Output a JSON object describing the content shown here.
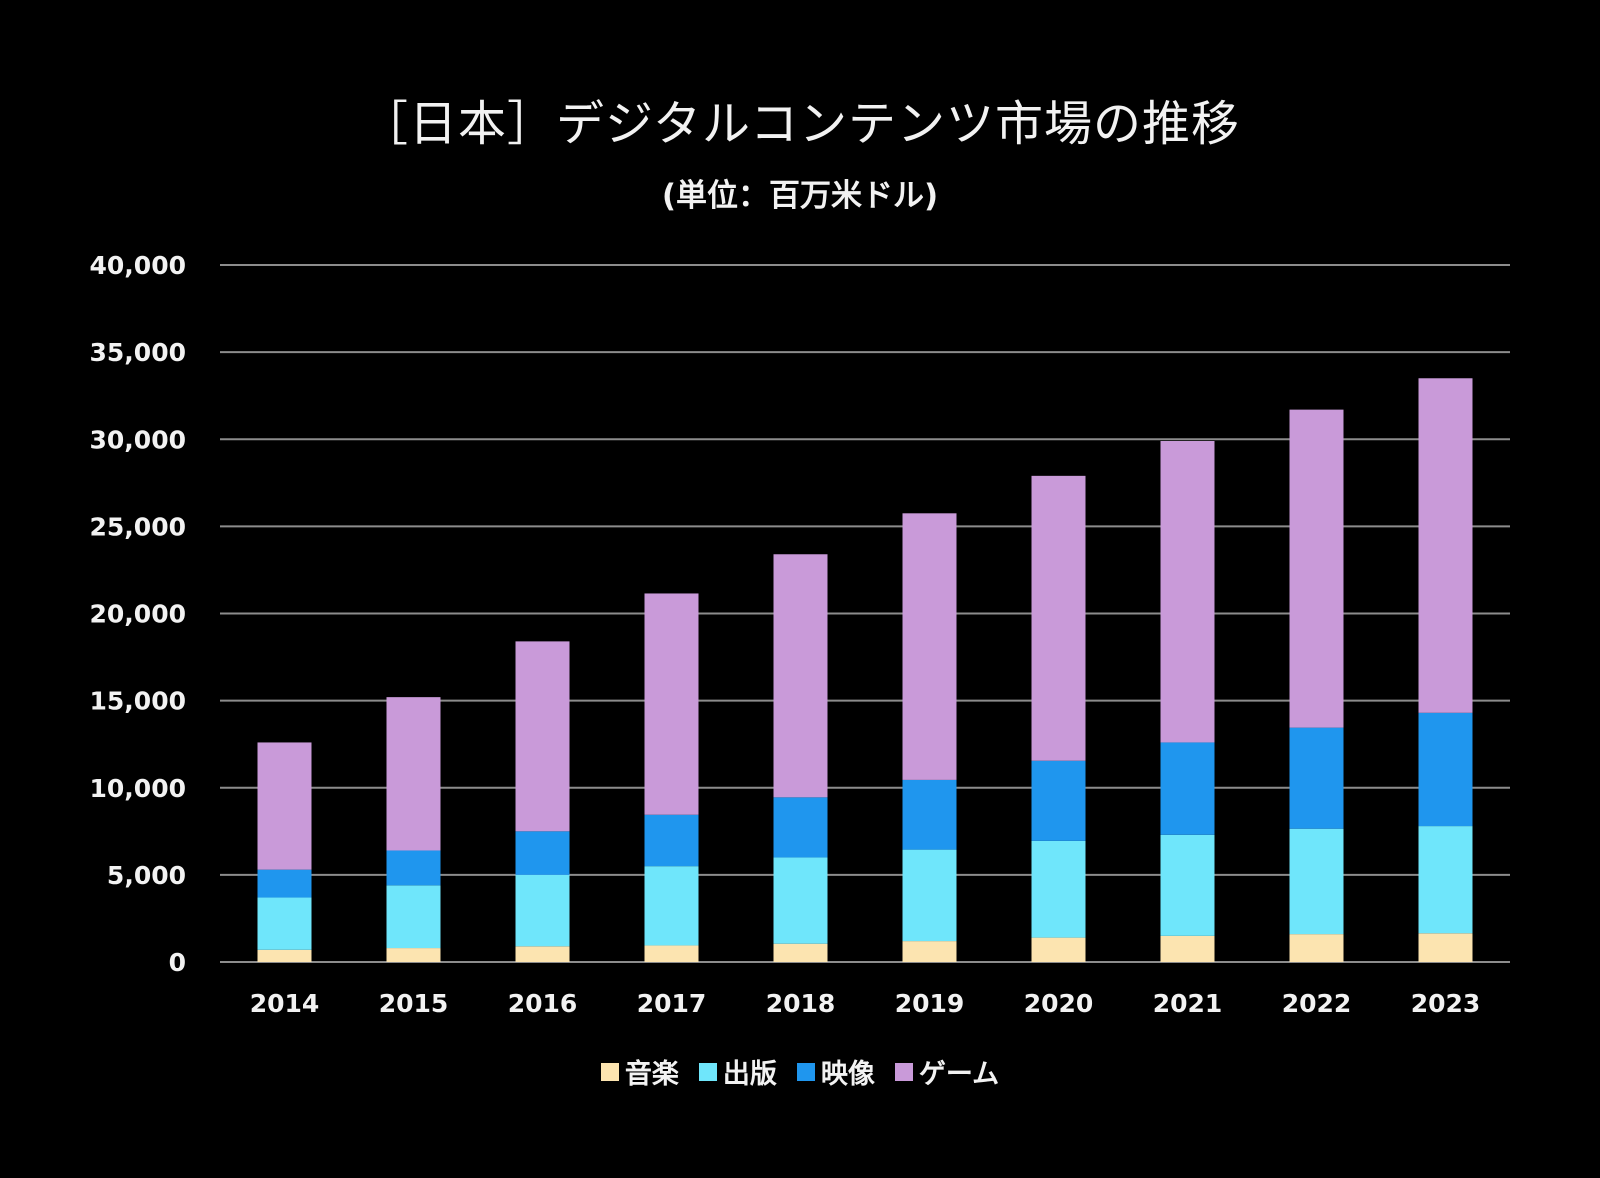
{
  "chart_data": {
    "type": "bar",
    "stacked": true,
    "title": "［日本］デジタルコンテンツ市場の推移",
    "subtitle": "(単位：百万米ドル)",
    "categories": [
      "2014",
      "2015",
      "2016",
      "2017",
      "2018",
      "2019",
      "2020",
      "2021",
      "2022",
      "2023"
    ],
    "series": [
      {
        "name": "音楽",
        "color": "#fce4b0",
        "values": [
          700,
          800,
          900,
          950,
          1050,
          1200,
          1400,
          1500,
          1600,
          1650
        ]
      },
      {
        "name": "出版",
        "color": "#6fe6fb",
        "values": [
          3000,
          3600,
          4100,
          4550,
          4950,
          5250,
          5550,
          5800,
          6050,
          6150
        ]
      },
      {
        "name": "映像",
        "color": "#1f96ee",
        "values": [
          1600,
          2000,
          2500,
          2950,
          3450,
          4000,
          4600,
          5300,
          5800,
          6500
        ]
      },
      {
        "name": "ゲーム",
        "color": "#c99ad9",
        "values": [
          7300,
          8800,
          10900,
          12700,
          13950,
          15300,
          16350,
          17300,
          18250,
          19200
        ]
      }
    ],
    "ylim": [
      0,
      40000
    ],
    "yticks": [
      0,
      5000,
      10000,
      15000,
      20000,
      25000,
      30000,
      35000,
      40000
    ],
    "ytick_labels": [
      "0",
      "5,000",
      "10,000",
      "15,000",
      "20,000",
      "25,000",
      "30,000",
      "35,000",
      "40,000"
    ],
    "grid": true,
    "legend_position": "bottom"
  },
  "colors": {
    "background": "#000000",
    "gridline": "#8c8c8c",
    "text": "#f2f2f2"
  }
}
